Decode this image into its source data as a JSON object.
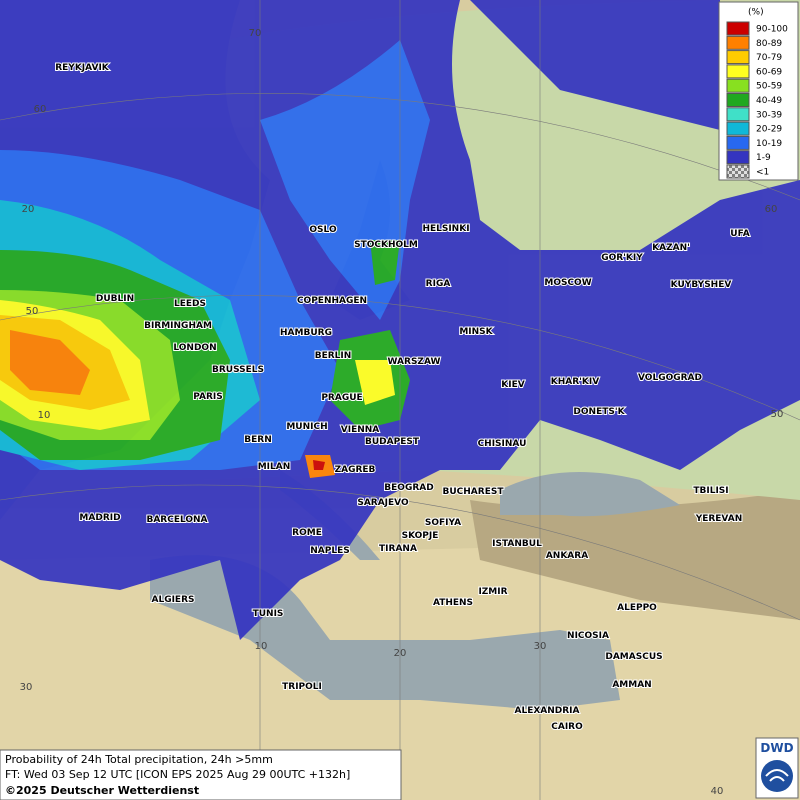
{
  "legend": {
    "unit": "(%)",
    "entries": [
      {
        "label": "90-100",
        "color": "#cc0000"
      },
      {
        "label": "80-89",
        "color": "#ff8000"
      },
      {
        "label": "70-79",
        "color": "#ffcc00"
      },
      {
        "label": "60-69",
        "color": "#ffff20"
      },
      {
        "label": "50-59",
        "color": "#88e020"
      },
      {
        "label": "40-49",
        "color": "#20a820"
      },
      {
        "label": "30-39",
        "color": "#40e0c8"
      },
      {
        "label": "20-29",
        "color": "#10b8d8"
      },
      {
        "label": "10-19",
        "color": "#2868f0"
      },
      {
        "label": "1-9",
        "color": "#3434c0"
      },
      {
        "label": "<1",
        "color": "#b0b0b0"
      }
    ]
  },
  "cities": [
    "REYKJAVIK",
    "DUBLIN",
    "LEEDS",
    "BIRMINGHAM",
    "LONDON",
    "BRUSSELS",
    "PARIS",
    "OSLO",
    "STOCKHOLM",
    "HELSINKI",
    "RIGA",
    "COPENHAGEN",
    "HAMBURG",
    "BERLIN",
    "WARSZAW",
    "MINSK",
    "MOSCOW",
    "GOR'KIY",
    "KAZAN'",
    "UFA",
    "KUYBYSHEV",
    "KIEV",
    "KHAR'KIV",
    "VOLGOGRAD",
    "DONETS'K",
    "PRAGUE",
    "MUNICH",
    "VIENNA",
    "BUDAPEST",
    "BERN",
    "MILAN",
    "ZAGREB",
    "CHISINAU",
    "BEOGRAD",
    "BUCHAREST",
    "TBILISI",
    "YEREVAN",
    "SARAJEVO",
    "SOFIYA",
    "MADRID",
    "BARCELONA",
    "ROME",
    "NAPLES",
    "SKOPJE",
    "TIRANA",
    "ISTANBUL",
    "ANKARA",
    "IZMIR",
    "ATHENS",
    "ALGIERS",
    "TUNIS",
    "ALEPPO",
    "NICOSIA",
    "DAMASCUS",
    "AMMAN",
    "TRIPOLI",
    "ALEXANDRIA",
    "CAIRO"
  ],
  "grid_labels": [
    "70",
    "60",
    "20",
    "50",
    "10",
    "60",
    "50",
    "20",
    "30",
    "10",
    "30",
    "40"
  ],
  "footer": {
    "line1": "Probability of 24h Total precipitation, 24h >5mm",
    "line2": "FT: Wed 03 Sep 12 UTC [ICON EPS 2025 Aug 29 00UTC +132h]",
    "copyright": "©2025 Deutscher Wetterdienst"
  },
  "logo": "DWD"
}
